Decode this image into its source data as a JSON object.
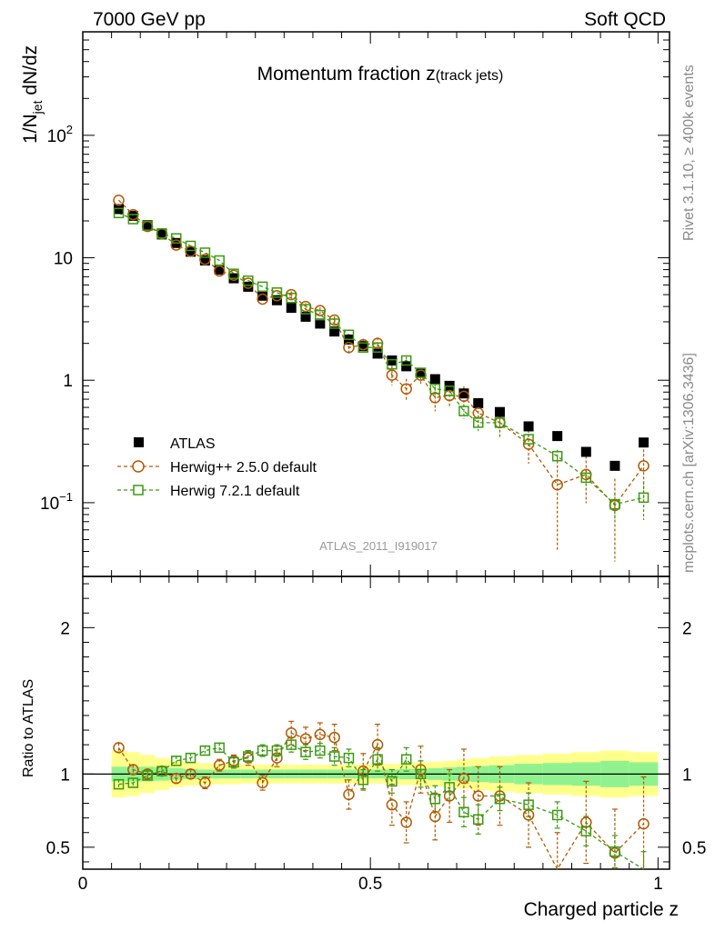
{
  "header": {
    "left": "7000 GeV pp",
    "right": "Soft QCD"
  },
  "side_labels": {
    "rivet": "Rivet 3.1.10, ≥ 400k events",
    "mcplots": "mcplots.cern.ch [arXiv:1306.3436]"
  },
  "chart_data": [
    {
      "type": "scatter",
      "panel": "main",
      "title": "Momentum fraction z(track jets)",
      "title_main": "Momentum fraction z",
      "title_sub": "(track jets)",
      "ylabel": "1/N_jet dN/dz",
      "ylabel_main": "1/N",
      "ylabel_sub": "jet",
      "ylabel_tail": " dN/dz",
      "yscale": "log",
      "ylim": [
        0.025,
        700
      ],
      "xlim": [
        0,
        1.02
      ],
      "yticks": [
        {
          "value": 0.1,
          "base": "10",
          "exp": "−1"
        },
        {
          "value": 1,
          "label": "1"
        },
        {
          "value": 10,
          "label": "10"
        },
        {
          "value": 100,
          "base": "10",
          "exp": "2"
        }
      ],
      "watermark": "ATLAS_2011_I919017",
      "legend_position": "bottom-left",
      "x": [
        0.0625,
        0.0875,
        0.1125,
        0.1375,
        0.1625,
        0.1875,
        0.2125,
        0.2375,
        0.2625,
        0.2875,
        0.3125,
        0.3375,
        0.3625,
        0.3875,
        0.4125,
        0.4375,
        0.4625,
        0.4875,
        0.5125,
        0.5375,
        0.5625,
        0.5875,
        0.6125,
        0.6375,
        0.6625,
        0.6875,
        0.725,
        0.775,
        0.825,
        0.875,
        0.925,
        0.975
      ],
      "series": [
        {
          "name": "ATLAS",
          "color": "#000000",
          "marker": "square-filled",
          "values": [
            25,
            22,
            18.5,
            15.5,
            13.2,
            11.2,
            9.5,
            8.0,
            6.8,
            5.8,
            4.9,
            4.5,
            3.9,
            3.3,
            2.9,
            2.5,
            2.15,
            1.9,
            1.65,
            1.45,
            1.3,
            1.15,
            1.02,
            0.9,
            0.78,
            0.65,
            0.55,
            0.42,
            0.35,
            0.26,
            0.2,
            0.31
          ]
        },
        {
          "name": "Herwig++ 2.5.0 default",
          "color": "#b35900",
          "marker": "circle-open",
          "values": [
            29.5,
            22.5,
            18.0,
            15.7,
            12.7,
            11.3,
            9.7,
            7.8,
            7.2,
            6.2,
            4.6,
            4.9,
            5.0,
            4.0,
            3.7,
            3.1,
            1.85,
            1.95,
            2.0,
            1.1,
            0.85,
            1.1,
            0.72,
            0.75,
            0.74,
            0.54,
            0.45,
            0.3,
            0.14,
            0.17,
            0.095,
            0.2
          ]
        },
        {
          "name": "Herwig 7.2.1 default",
          "color": "#3a9b10",
          "marker": "square-open",
          "values": [
            23.2,
            20.7,
            18.3,
            15.8,
            14.4,
            12.5,
            11.0,
            9.5,
            7.4,
            6.5,
            5.8,
            5.2,
            4.7,
            3.8,
            3.4,
            2.9,
            2.35,
            1.85,
            1.85,
            1.35,
            1.45,
            1.15,
            0.85,
            0.82,
            0.56,
            0.45,
            0.45,
            0.33,
            0.24,
            0.16,
            0.097,
            0.11
          ]
        }
      ]
    },
    {
      "type": "scatter",
      "panel": "ratio",
      "ylabel": "Ratio to ATLAS",
      "xlabel": "Charged particle z",
      "ylim": [
        0.35,
        2.35
      ],
      "xlim": [
        0,
        1.02
      ],
      "yticks": [
        0.5,
        1,
        2
      ],
      "ytick_labels": [
        "0.5",
        "1",
        "2"
      ],
      "xticks": [
        0,
        0.5,
        1
      ],
      "xtick_labels": [
        "0",
        "0.5",
        "1"
      ],
      "reference_line": 1,
      "band_inner_color": "#8ff28f",
      "band_outer_color": "#ffff8c",
      "band_inner_halfwidth": [
        0.05,
        0.05,
        0.05,
        0.045,
        0.04,
        0.035,
        0.03,
        0.03,
        0.03,
        0.03,
        0.03,
        0.03,
        0.03,
        0.03,
        0.03,
        0.03,
        0.03,
        0.03,
        0.03,
        0.03,
        0.035,
        0.035,
        0.04,
        0.045,
        0.05,
        0.055,
        0.06,
        0.07,
        0.075,
        0.08,
        0.09,
        0.08
      ],
      "band_outer_halfwidth": [
        0.16,
        0.15,
        0.13,
        0.11,
        0.09,
        0.08,
        0.075,
        0.07,
        0.07,
        0.065,
        0.065,
        0.065,
        0.065,
        0.065,
        0.065,
        0.065,
        0.065,
        0.065,
        0.065,
        0.07,
        0.075,
        0.08,
        0.085,
        0.09,
        0.1,
        0.11,
        0.12,
        0.13,
        0.14,
        0.15,
        0.16,
        0.15
      ],
      "series": [
        {
          "name": "Herwig++ 2.5.0 default",
          "values": [
            1.18,
            1.03,
            1.0,
            1.02,
            0.97,
            1.0,
            0.94,
            1.06,
            1.09,
            1.11,
            0.94,
            1.11,
            1.28,
            1.24,
            1.27,
            1.25,
            0.86,
            1.02,
            1.2,
            0.79,
            0.67,
            1.03,
            0.71,
            0.85,
            0.97,
            0.85,
            0.85,
            0.72,
            0.35,
            0.67,
            0.46,
            0.66
          ],
          "errors": [
            0.03,
            0.03,
            0.03,
            0.03,
            0.03,
            0.03,
            0.04,
            0.04,
            0.04,
            0.05,
            0.05,
            0.06,
            0.08,
            0.08,
            0.08,
            0.09,
            0.1,
            0.12,
            0.14,
            0.14,
            0.14,
            0.16,
            0.16,
            0.18,
            0.2,
            0.2,
            0.2,
            0.22,
            0.25,
            0.28,
            0.3,
            0.32
          ]
        },
        {
          "name": "Herwig 7.2.1 default",
          "values": [
            0.93,
            0.94,
            0.99,
            1.02,
            1.09,
            1.11,
            1.16,
            1.18,
            1.08,
            1.12,
            1.16,
            1.16,
            1.2,
            1.15,
            1.16,
            1.12,
            1.11,
            0.96,
            1.1,
            0.95,
            1.1,
            1.0,
            0.83,
            0.91,
            0.74,
            0.69,
            0.83,
            0.79,
            0.72,
            0.61,
            0.47,
            0.35
          ],
          "errors": [
            0.03,
            0.03,
            0.03,
            0.03,
            0.03,
            0.03,
            0.03,
            0.03,
            0.04,
            0.04,
            0.04,
            0.04,
            0.05,
            0.05,
            0.05,
            0.06,
            0.06,
            0.07,
            0.08,
            0.08,
            0.08,
            0.09,
            0.09,
            0.09,
            0.1,
            0.1,
            0.08,
            0.08,
            0.09,
            0.1,
            0.11,
            0.12
          ]
        }
      ]
    }
  ]
}
